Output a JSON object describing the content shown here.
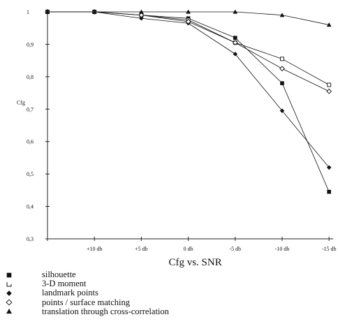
{
  "chart_data": {
    "type": "line",
    "title": "Cfg vs. SNR",
    "xlabel": "",
    "ylabel": "Cfg",
    "categories": [
      "",
      "+10 db",
      "+5 db",
      "0 db",
      "-5 db",
      "-10 db",
      "-15 db"
    ],
    "ylim": [
      0.3,
      1.0
    ],
    "yticks": [
      "0,3",
      "0,4",
      "0,5",
      "0,6",
      "0,7",
      "0,8",
      "0,9",
      "1"
    ],
    "grid": false,
    "legend_position": "bottom-left",
    "series": [
      {
        "name": "silhouette",
        "marker": "filled-square",
        "values": [
          1.0,
          1.0,
          0.99,
          0.98,
          0.92,
          0.78,
          0.445
        ]
      },
      {
        "name": "3-D moment",
        "marker": "open-square",
        "values": [
          1.0,
          1.0,
          0.99,
          0.975,
          0.905,
          0.855,
          0.775
        ]
      },
      {
        "name": "landmark points",
        "marker": "filled-diamond",
        "values": [
          1.0,
          1.0,
          0.98,
          0.965,
          0.87,
          0.695,
          0.52
        ]
      },
      {
        "name": "points / surface matching",
        "marker": "open-diamond",
        "values": [
          1.0,
          1.0,
          0.99,
          0.97,
          0.905,
          0.825,
          0.755
        ]
      },
      {
        "name": "translation through cross-correlation",
        "marker": "filled-triangle",
        "values": [
          1.0,
          1.0,
          1.0,
          1.0,
          1.0,
          0.99,
          0.96
        ]
      }
    ]
  }
}
